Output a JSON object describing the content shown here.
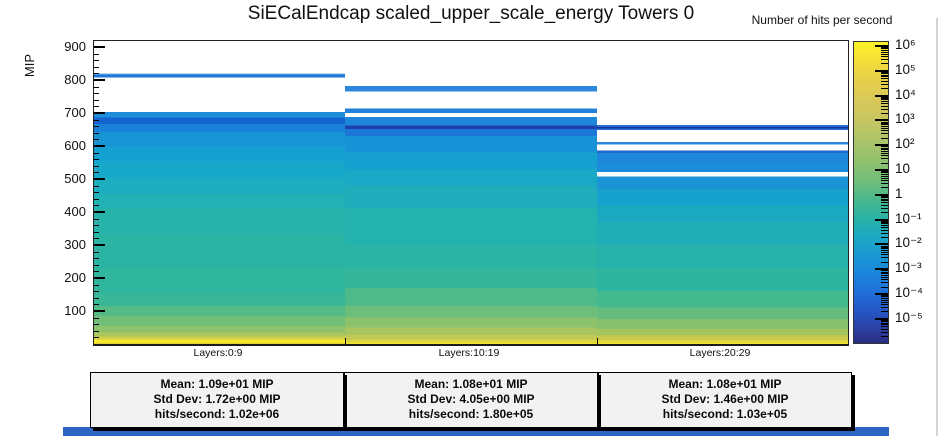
{
  "colorbar": {
    "title": "Number of hits per second",
    "tick_labels": [
      "10⁶",
      "10⁵",
      "10⁴",
      "10³",
      "10²",
      "10",
      "1",
      "10⁻¹",
      "10⁻²",
      "10⁻³",
      "10⁻⁴",
      "10⁻⁵"
    ],
    "gradient": [
      [
        0,
        "#fcf42a"
      ],
      [
        3,
        "#f9e92e"
      ],
      [
        8,
        "#f0d93d"
      ],
      [
        13,
        "#e6cf4b"
      ],
      [
        19,
        "#d9c958"
      ],
      [
        26,
        "#c6c661"
      ],
      [
        33,
        "#abc469"
      ],
      [
        40,
        "#8fc16f"
      ],
      [
        47,
        "#6cbd7b"
      ],
      [
        53,
        "#44b88f"
      ],
      [
        59,
        "#27b2a8"
      ],
      [
        65,
        "#1ca8c4"
      ],
      [
        71,
        "#1a98d3"
      ],
      [
        77,
        "#1b86dc"
      ],
      [
        83,
        "#2070d9"
      ],
      [
        89,
        "#2558c6"
      ],
      [
        95,
        "#2a41a5"
      ],
      [
        100,
        "#282e7f"
      ]
    ]
  },
  "y_axis": {
    "major_ticks": [
      900,
      800,
      700,
      600,
      500,
      400,
      300,
      200,
      100
    ],
    "minor_step": 20,
    "top_value": 918
  },
  "window": {
    "bottom_strip_color": "#2d65c5"
  },
  "chart_data": {
    "type": "heatmap",
    "title": "SiECalEndcap scaled_upper_scale_energy Towers 0",
    "ylabel": "MIP",
    "y_range": [
      0,
      918
    ],
    "z_label": "Number of hits per second",
    "z_scale": "log",
    "z_axis_labels": [
      "1e6",
      "1e5",
      "1e4",
      "1e3",
      "1e2",
      "10",
      "1",
      "1e-1",
      "1e-2",
      "1e-3",
      "1e-4",
      "1e-5"
    ],
    "legend_position": "right",
    "columns": [
      {
        "label": "Layers:0:9",
        "stats": {
          "mean": "Mean: 1.09e+01 MIP",
          "std_dev": "Std Dev: 1.72e+00 MIP",
          "hits": "hits/second: 1.02e+06"
        },
        "bands": [
          [
            918,
            820,
            "#ffffff"
          ],
          [
            820,
            817,
            "#6aaae4"
          ],
          [
            817,
            809,
            "#1e78d8"
          ],
          [
            809,
            806,
            "#8fc0ea"
          ],
          [
            806,
            703,
            "#ffffff"
          ],
          [
            703,
            686,
            "#1f8cdc"
          ],
          [
            686,
            666,
            "#1563cf"
          ],
          [
            666,
            642,
            "#1a80d8"
          ],
          [
            642,
            600,
            "#1795d5"
          ],
          [
            600,
            555,
            "#14a0d0"
          ],
          [
            555,
            505,
            "#17a7c9"
          ],
          [
            505,
            455,
            "#1cadc0"
          ],
          [
            455,
            410,
            "#22b1b5"
          ],
          [
            410,
            330,
            "#27b3aa"
          ],
          [
            330,
            230,
            "#2bb4a4"
          ],
          [
            230,
            150,
            "#30b69d"
          ],
          [
            150,
            115,
            "#3ab797"
          ],
          [
            115,
            85,
            "#54bb86"
          ],
          [
            85,
            55,
            "#71bf78"
          ],
          [
            55,
            35,
            "#8dc36a"
          ],
          [
            35,
            22,
            "#aec65e"
          ],
          [
            22,
            13,
            "#d0cf4e"
          ],
          [
            13,
            3,
            "#f4e72c"
          ],
          [
            3,
            0,
            "#e3cf3a"
          ]
        ]
      },
      {
        "label": "Layers:10:19",
        "stats": {
          "mean": "Mean: 1.08e+01 MIP",
          "std_dev": "Std Dev: 4.05e+00 MIP",
          "hits": "hits/second: 1.80e+05"
        },
        "bands": [
          [
            918,
            781,
            "#ffffff"
          ],
          [
            781,
            765,
            "#2e86dc"
          ],
          [
            765,
            713,
            "#ffffff"
          ],
          [
            713,
            700,
            "#2280da"
          ],
          [
            700,
            688,
            "#ffffff"
          ],
          [
            688,
            662,
            "#1e87db"
          ],
          [
            662,
            651,
            "#1d41a8"
          ],
          [
            651,
            630,
            "#1b77d8"
          ],
          [
            630,
            580,
            "#1792d6"
          ],
          [
            580,
            530,
            "#15a0d0"
          ],
          [
            530,
            480,
            "#19a8c6"
          ],
          [
            480,
            410,
            "#1fadbc"
          ],
          [
            410,
            300,
            "#24b2ae"
          ],
          [
            300,
            230,
            "#2ab4a3"
          ],
          [
            230,
            170,
            "#35b69b"
          ],
          [
            170,
            115,
            "#4fba89"
          ],
          [
            115,
            80,
            "#6cbe7a"
          ],
          [
            80,
            50,
            "#8cc26b"
          ],
          [
            50,
            28,
            "#a8c560"
          ],
          [
            28,
            14,
            "#c1ca54"
          ],
          [
            14,
            5,
            "#ddd342"
          ],
          [
            5,
            0,
            "#f0e430"
          ]
        ]
      },
      {
        "label": "Layers:20:29",
        "stats": {
          "mean": "Mean: 1.08e+01 MIP",
          "std_dev": "Std Dev: 1.46e+00 MIP",
          "hits": "hits/second: 1.03e+05"
        },
        "bands": [
          [
            918,
            663,
            "#ffffff"
          ],
          [
            663,
            658,
            "#2270d6"
          ],
          [
            658,
            653,
            "#1c309a"
          ],
          [
            653,
            648,
            "#2270d6"
          ],
          [
            648,
            612,
            "#ffffff"
          ],
          [
            612,
            605,
            "#2e86dc"
          ],
          [
            605,
            586,
            "#ffffff"
          ],
          [
            586,
            578,
            "#1b6ad4"
          ],
          [
            578,
            548,
            "#1d87dc"
          ],
          [
            548,
            521,
            "#1b8cda"
          ],
          [
            521,
            507,
            "#ffffff"
          ],
          [
            507,
            470,
            "#1b94d6"
          ],
          [
            470,
            420,
            "#17a2ce"
          ],
          [
            420,
            370,
            "#1ba9c2"
          ],
          [
            370,
            300,
            "#20aeb6"
          ],
          [
            300,
            230,
            "#26b2ab"
          ],
          [
            230,
            160,
            "#2db5a0"
          ],
          [
            160,
            110,
            "#44b990"
          ],
          [
            110,
            75,
            "#65bd7d"
          ],
          [
            75,
            45,
            "#87c16d"
          ],
          [
            45,
            25,
            "#a6c55f"
          ],
          [
            25,
            12,
            "#c6cb50"
          ],
          [
            12,
            4,
            "#e0d63e"
          ],
          [
            4,
            0,
            "#f0e32f"
          ]
        ]
      }
    ]
  }
}
